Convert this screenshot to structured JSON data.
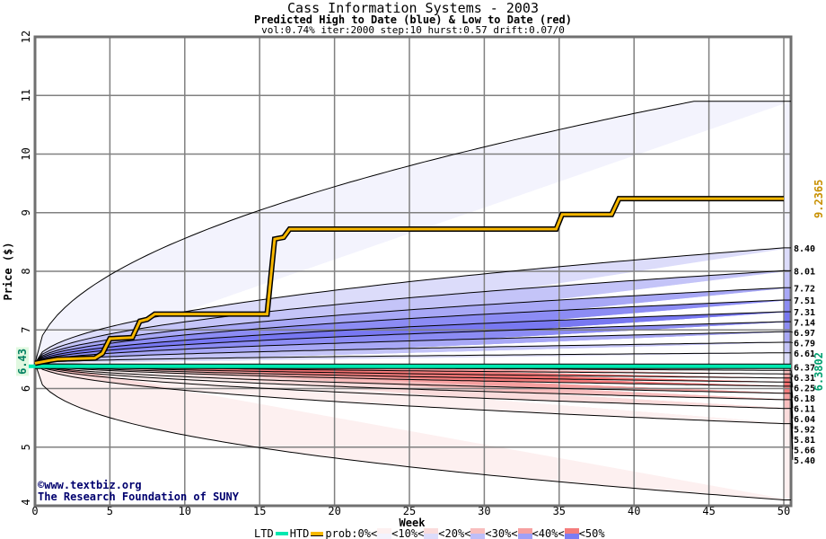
{
  "chart_data": {
    "type": "area",
    "title": "Cass Information Systems - 2003",
    "subtitle": "Predicted High to Date (blue) &  Low to Date (red)",
    "params": "vol:0.74% iter:2000 step:10 hurst:0.57 drift:0.07/0",
    "xlabel": "Week",
    "ylabel": "Price ($)",
    "xlim": [
      0,
      50
    ],
    "ylim": [
      4,
      12
    ],
    "xticks": [
      "0",
      "5",
      "10",
      "15",
      "20",
      "25",
      "30",
      "35",
      "40",
      "45",
      "50"
    ],
    "yticks": [
      "4",
      "5",
      "6",
      "7",
      "8",
      "9",
      "10",
      "11",
      "12"
    ],
    "start_price": "6.43",
    "upper_envelope_end": 10.9,
    "lower_envelope_end": 4.1,
    "blue_quantile_ends": [
      "8.40",
      "8.01",
      "7.72",
      "7.51",
      "7.31",
      "7.14",
      "6.97",
      "6.79",
      "6.61",
      "6.37"
    ],
    "red_quantile_ends": [
      "6.31",
      "6.25",
      "6.18",
      "6.11",
      "6.04",
      "5.92",
      "5.81",
      "5.66",
      "5.40"
    ],
    "ltd": {
      "label": "6.3802",
      "value": 6.3802,
      "color": "#00e8b0"
    },
    "htd": {
      "label": "9.2365",
      "value": 9.2365,
      "color": "#f8b800",
      "steps": [
        [
          0,
          6.43
        ],
        [
          1,
          6.48
        ],
        [
          1.5,
          6.5
        ],
        [
          4,
          6.52
        ],
        [
          4.5,
          6.6
        ],
        [
          5,
          6.85
        ],
        [
          6.5,
          6.87
        ],
        [
          7,
          7.15
        ],
        [
          7.5,
          7.18
        ],
        [
          8,
          7.27
        ],
        [
          15.5,
          7.27
        ],
        [
          16,
          8.55
        ],
        [
          16.6,
          8.58
        ],
        [
          17,
          8.72
        ],
        [
          34.8,
          8.72
        ],
        [
          35.2,
          8.97
        ],
        [
          38.5,
          8.97
        ],
        [
          39,
          9.24
        ],
        [
          50,
          9.24
        ]
      ]
    },
    "legend": {
      "ltd": "LTD",
      "htd": "HTD",
      "prob": "prob:0%<",
      "bands": [
        "<10%<",
        "<20%<",
        "<30%<",
        "<40%<",
        "<50%"
      ]
    }
  },
  "credit": {
    "line1": "©www.textbiz.org",
    "line2": "The Research Foundation of SUNY"
  }
}
